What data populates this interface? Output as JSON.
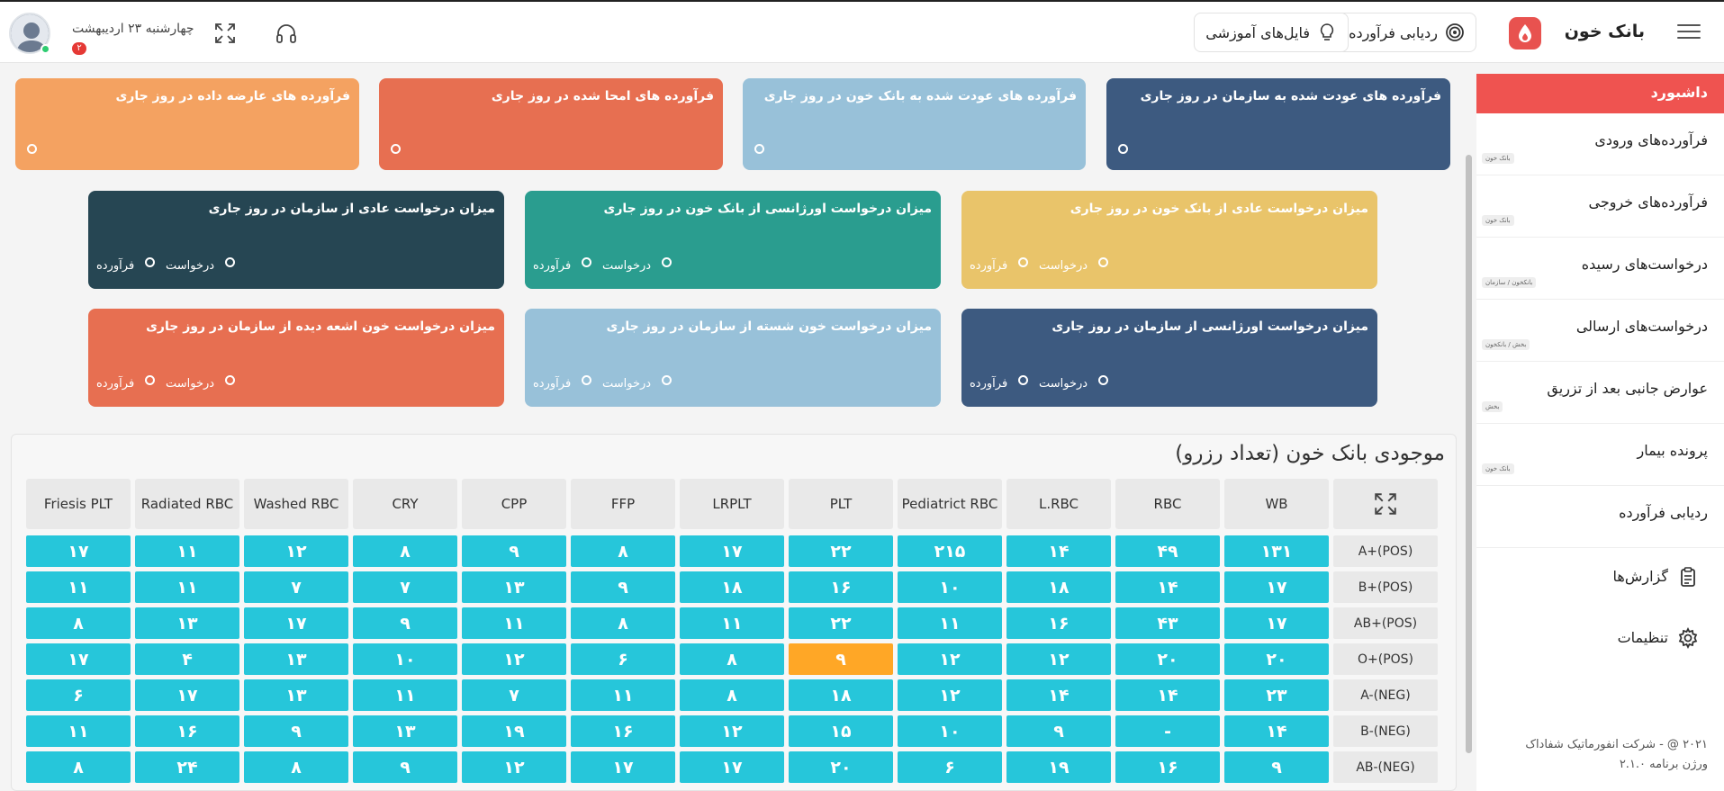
{
  "header": {
    "brand": "بانک خون",
    "track_button": "ردیابی فرآورده",
    "training_button": "فایل‌های آموزشی",
    "date": "چهارشنبه ۲۳ اردیبهشت",
    "notification_count": "۲"
  },
  "sidebar": {
    "active": "داشبورد",
    "items": [
      {
        "label": "فرآورده‌های ورودی",
        "tag": "بانک خون"
      },
      {
        "label": "فرآورده‌های خروجی",
        "tag": "بانک خون"
      },
      {
        "label": "درخواست‌های رسیده",
        "tag": "بانکخون / سازمان"
      },
      {
        "label": "درخواست‌های ارسالی",
        "tag": "بخش / بانکخون"
      },
      {
        "label": "عوارض جانبی بعد از تزریق",
        "tag": "بخش"
      },
      {
        "label": "پرونده بیمار",
        "tag": "بانک خون"
      },
      {
        "label": "ردیابی فرآورده",
        "tag": ""
      }
    ],
    "reports": "گزارش‌ها",
    "settings": "تنظیمات",
    "copyright": "۲۰۲۱ @ - شرکت انفورماتیک شفاداک",
    "version": "ورژن برنامه ۲.۱.۰"
  },
  "cards_row1": [
    {
      "title": "فرآورده های عودت شده به سازمان در روز جاری",
      "color": "#3d5a80"
    },
    {
      "title": "فرآورده های عودت شده به بانک خون در روز جاری",
      "color": "#98c1d9"
    },
    {
      "title": "فرآورده های امحا شده در روز جاری",
      "color": "#e76f51"
    },
    {
      "title": "فرآورده های عارضه داده در روز جاری",
      "color": "#f4a261"
    }
  ],
  "cards_row2": [
    {
      "title": "میزان درخواست عادی از بانک خون در روز جاری",
      "color": "#e9c46a"
    },
    {
      "title": "میزان درخواست اورژانسی از بانک خون در روز جاری",
      "color": "#2a9d8f"
    },
    {
      "title": "میزان درخواست عادی از سازمان در روز جاری",
      "color": "#264653"
    }
  ],
  "cards_row3": [
    {
      "title": "میزان درخواست اورژانسی از سازمان در روز جاری",
      "color": "#3d5a80"
    },
    {
      "title": "میزان درخواست خون شسته از سازمان در روز جاری",
      "color": "#98c1d9"
    },
    {
      "title": "میزان درخواست خون اشعه دیده از سازمان در روز جاری",
      "color": "#e76f51"
    }
  ],
  "labels": {
    "request": "درخواست",
    "product": "فرآورده"
  },
  "inventory": {
    "title": "موجودی بانک خون (تعداد رزرو)",
    "columns": [
      "Friesis PLT",
      "Radiated RBC",
      "Washed RBC",
      "CRY",
      "CPP",
      "FFP",
      "LRPLT",
      "PLT",
      "Pediatrict RBC",
      "L.RBC",
      "RBC",
      "WB"
    ],
    "rows": [
      {
        "label": "A+(POS)",
        "values": [
          "۱۷",
          "۱۱",
          "۱۲",
          "۸",
          "۹",
          "۸",
          "۱۷",
          "۲۲",
          "۲۱۵",
          "۱۴",
          "۴۹",
          "۱۳۱"
        ]
      },
      {
        "label": "B+(POS)",
        "values": [
          "۱۱",
          "۱۱",
          "۷",
          "۷",
          "۱۳",
          "۹",
          "۱۸",
          "۱۶",
          "۱۰",
          "۱۸",
          "۱۴",
          "۱۷"
        ]
      },
      {
        "label": "AB+(POS)",
        "values": [
          "۸",
          "۱۳",
          "۱۷",
          "۹",
          "۱۱",
          "۸",
          "۱۱",
          "۲۲",
          "۱۱",
          "۱۶",
          "۴۳",
          "۱۷"
        ]
      },
      {
        "label": "O+(POS)",
        "values": [
          "۱۷",
          "۴",
          "۱۳",
          "۱۰",
          "۱۲",
          "۶",
          "۸",
          "۹",
          "۱۲",
          "۱۲",
          "۲۰",
          "۲۰"
        ]
      },
      {
        "label": "A-(NEG)",
        "values": [
          "۶",
          "۱۷",
          "۱۳",
          "۱۱",
          "۷",
          "۱۱",
          "۸",
          "۱۸",
          "۱۲",
          "۱۴",
          "۱۴",
          "۲۳"
        ]
      },
      {
        "label": "B-(NEG)",
        "values": [
          "۱۱",
          "۱۶",
          "۹",
          "۱۳",
          "۱۹",
          "۱۶",
          "۱۲",
          "۱۵",
          "۱۰",
          "۹",
          "-",
          "۱۴"
        ]
      },
      {
        "label": "AB-(NEG)",
        "values": [
          "۸",
          "۲۴",
          "۸",
          "۹",
          "۱۲",
          "۱۷",
          "۱۷",
          "۲۰",
          "۶",
          "۱۹",
          "۱۶",
          "۹"
        ]
      }
    ],
    "warn_color": "#ffa726",
    "ok_color": "#26c6da"
  }
}
